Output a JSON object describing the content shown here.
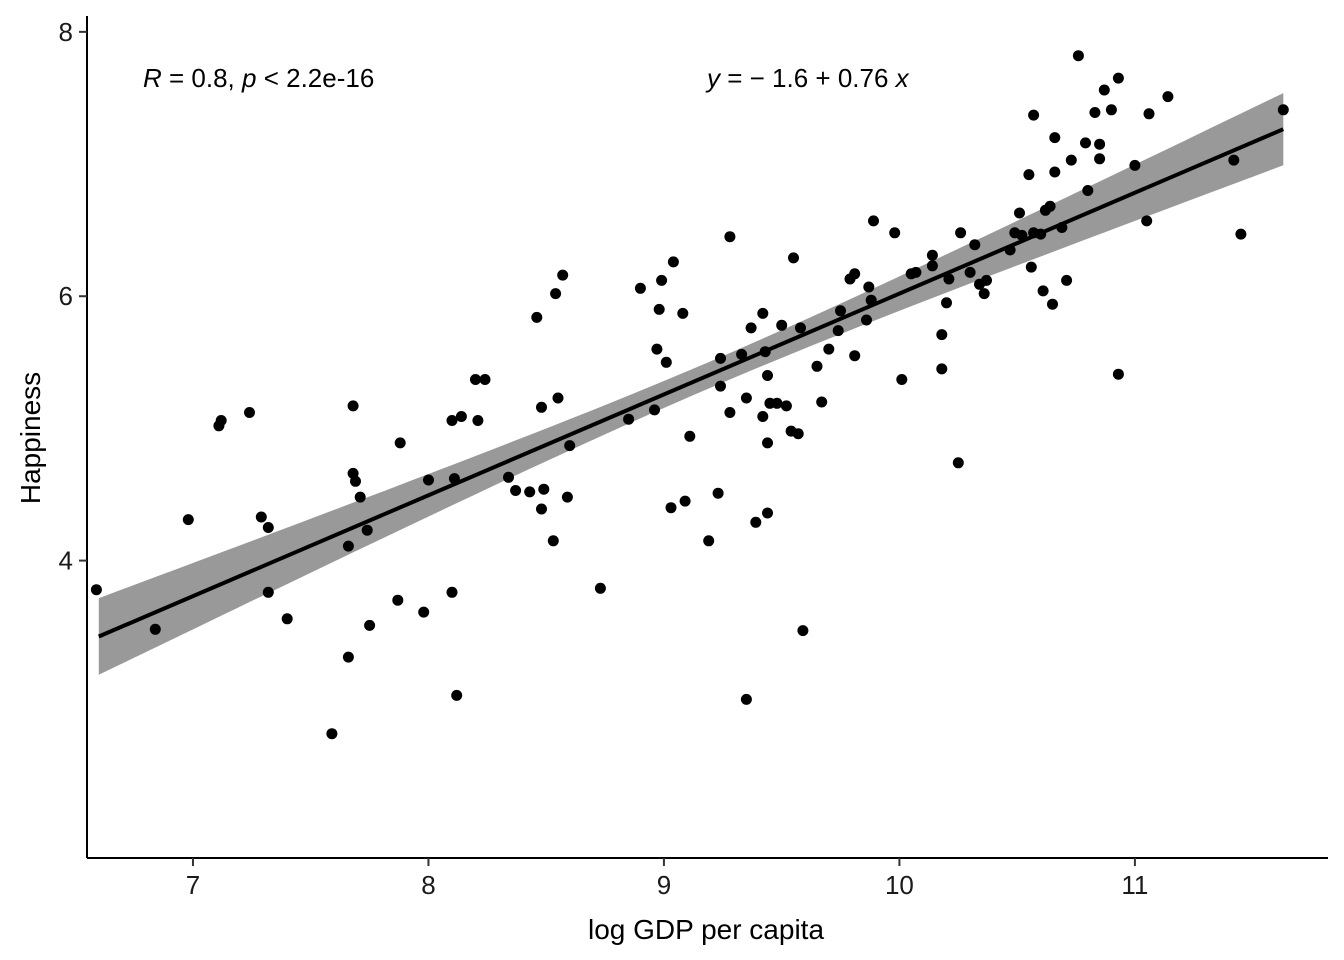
{
  "chart_data": {
    "type": "scatter",
    "xlabel": "log GDP per capita",
    "ylabel": "Happiness",
    "xlim": [
      6.55,
      11.82
    ],
    "ylim": [
      1.75,
      8.12
    ],
    "x_ticks": [
      7,
      8,
      9,
      10,
      11
    ],
    "y_ticks": [
      4,
      6,
      8
    ],
    "grid": false,
    "annotations": {
      "correlation": {
        "r_symbol": "R",
        "r_text": " = 0.8, ",
        "p_symbol": "p",
        "p_text": " < 2.2e-16"
      },
      "equation": {
        "y_symbol": "y",
        "eq_text": " = − 1.6 + 0.76 ",
        "x_symbol": "x"
      }
    },
    "regression": {
      "intercept": -1.61,
      "slope": 0.763,
      "x_range": [
        6.6,
        11.63
      ],
      "band_halfwidth_at_ends": 0.29,
      "band_halfwidth_at_center": 0.1,
      "x_center": 9.2
    },
    "points": [
      [
        6.59,
        3.78
      ],
      [
        6.84,
        3.48
      ],
      [
        6.98,
        4.31
      ],
      [
        7.11,
        5.02
      ],
      [
        7.12,
        5.06
      ],
      [
        7.24,
        5.12
      ],
      [
        7.29,
        4.33
      ],
      [
        7.32,
        4.25
      ],
      [
        7.32,
        3.76
      ],
      [
        7.4,
        3.56
      ],
      [
        7.59,
        2.69
      ],
      [
        7.66,
        3.27
      ],
      [
        7.66,
        4.11
      ],
      [
        7.68,
        5.17
      ],
      [
        7.68,
        4.66
      ],
      [
        7.69,
        4.6
      ],
      [
        7.71,
        4.48
      ],
      [
        7.74,
        4.23
      ],
      [
        7.75,
        3.51
      ],
      [
        7.87,
        3.7
      ],
      [
        7.88,
        4.89
      ],
      [
        7.98,
        3.61
      ],
      [
        8.0,
        4.61
      ],
      [
        8.1,
        3.76
      ],
      [
        8.1,
        5.06
      ],
      [
        8.11,
        4.62
      ],
      [
        8.12,
        2.98
      ],
      [
        8.14,
        5.09
      ],
      [
        8.2,
        5.37
      ],
      [
        8.21,
        5.06
      ],
      [
        8.24,
        5.37
      ],
      [
        8.34,
        4.63
      ],
      [
        8.37,
        4.53
      ],
      [
        8.43,
        4.52
      ],
      [
        8.46,
        5.84
      ],
      [
        8.48,
        5.16
      ],
      [
        8.48,
        4.39
      ],
      [
        8.49,
        4.54
      ],
      [
        8.53,
        4.15
      ],
      [
        8.54,
        6.02
      ],
      [
        8.55,
        5.23
      ],
      [
        8.57,
        6.16
      ],
      [
        8.59,
        4.48
      ],
      [
        8.6,
        4.87
      ],
      [
        8.73,
        3.79
      ],
      [
        8.85,
        5.07
      ],
      [
        8.9,
        6.06
      ],
      [
        8.96,
        5.14
      ],
      [
        8.97,
        5.6
      ],
      [
        8.98,
        5.9
      ],
      [
        8.99,
        6.12
      ],
      [
        9.01,
        5.5
      ],
      [
        9.03,
        4.4
      ],
      [
        9.04,
        6.26
      ],
      [
        9.08,
        5.87
      ],
      [
        9.09,
        4.45
      ],
      [
        9.11,
        4.94
      ],
      [
        9.19,
        4.15
      ],
      [
        9.23,
        4.51
      ],
      [
        9.24,
        5.53
      ],
      [
        9.24,
        5.32
      ],
      [
        9.28,
        5.12
      ],
      [
        9.28,
        6.45
      ],
      [
        9.33,
        5.56
      ],
      [
        9.35,
        2.95
      ],
      [
        9.35,
        5.23
      ],
      [
        9.37,
        5.76
      ],
      [
        9.39,
        4.29
      ],
      [
        9.42,
        5.87
      ],
      [
        9.42,
        5.09
      ],
      [
        9.43,
        5.58
      ],
      [
        9.44,
        4.36
      ],
      [
        9.44,
        4.89
      ],
      [
        9.44,
        5.4
      ],
      [
        9.45,
        5.19
      ],
      [
        9.48,
        5.19
      ],
      [
        9.5,
        5.78
      ],
      [
        9.52,
        5.17
      ],
      [
        9.54,
        4.98
      ],
      [
        9.55,
        6.29
      ],
      [
        9.57,
        4.96
      ],
      [
        9.58,
        5.76
      ],
      [
        9.59,
        3.47
      ],
      [
        9.65,
        5.47
      ],
      [
        9.67,
        5.2
      ],
      [
        9.7,
        5.6
      ],
      [
        9.74,
        5.74
      ],
      [
        9.75,
        5.89
      ],
      [
        9.79,
        6.13
      ],
      [
        9.81,
        6.17
      ],
      [
        9.81,
        5.55
      ],
      [
        9.86,
        5.82
      ],
      [
        9.87,
        6.07
      ],
      [
        9.88,
        5.97
      ],
      [
        9.89,
        6.57
      ],
      [
        9.98,
        6.48
      ],
      [
        10.01,
        5.37
      ],
      [
        10.05,
        6.17
      ],
      [
        10.07,
        6.18
      ],
      [
        10.14,
        6.23
      ],
      [
        10.14,
        6.31
      ],
      [
        10.18,
        5.71
      ],
      [
        10.18,
        5.45
      ],
      [
        10.2,
        5.95
      ],
      [
        10.21,
        6.13
      ],
      [
        10.25,
        4.74
      ],
      [
        10.26,
        6.48
      ],
      [
        10.3,
        6.18
      ],
      [
        10.32,
        6.39
      ],
      [
        10.34,
        6.09
      ],
      [
        10.36,
        6.02
      ],
      [
        10.37,
        6.12
      ],
      [
        10.47,
        6.35
      ],
      [
        10.49,
        6.48
      ],
      [
        10.51,
        6.63
      ],
      [
        10.52,
        6.46
      ],
      [
        10.55,
        6.92
      ],
      [
        10.56,
        6.22
      ],
      [
        10.57,
        7.37
      ],
      [
        10.57,
        6.48
      ],
      [
        10.6,
        6.47
      ],
      [
        10.61,
        6.04
      ],
      [
        10.62,
        6.65
      ],
      [
        10.64,
        6.68
      ],
      [
        10.65,
        5.94
      ],
      [
        10.66,
        7.2
      ],
      [
        10.66,
        6.94
      ],
      [
        10.69,
        6.52
      ],
      [
        10.71,
        6.12
      ],
      [
        10.73,
        7.03
      ],
      [
        10.76,
        7.82
      ],
      [
        10.79,
        7.16
      ],
      [
        10.8,
        6.8
      ],
      [
        10.83,
        7.39
      ],
      [
        10.85,
        7.04
      ],
      [
        10.85,
        7.15
      ],
      [
        10.87,
        7.56
      ],
      [
        10.9,
        7.41
      ],
      [
        10.93,
        7.65
      ],
      [
        10.93,
        5.41
      ],
      [
        11.0,
        6.99
      ],
      [
        11.05,
        6.57
      ],
      [
        11.06,
        7.38
      ],
      [
        11.14,
        7.51
      ],
      [
        11.42,
        7.03
      ],
      [
        11.45,
        6.47
      ],
      [
        11.63,
        7.41
      ]
    ]
  }
}
